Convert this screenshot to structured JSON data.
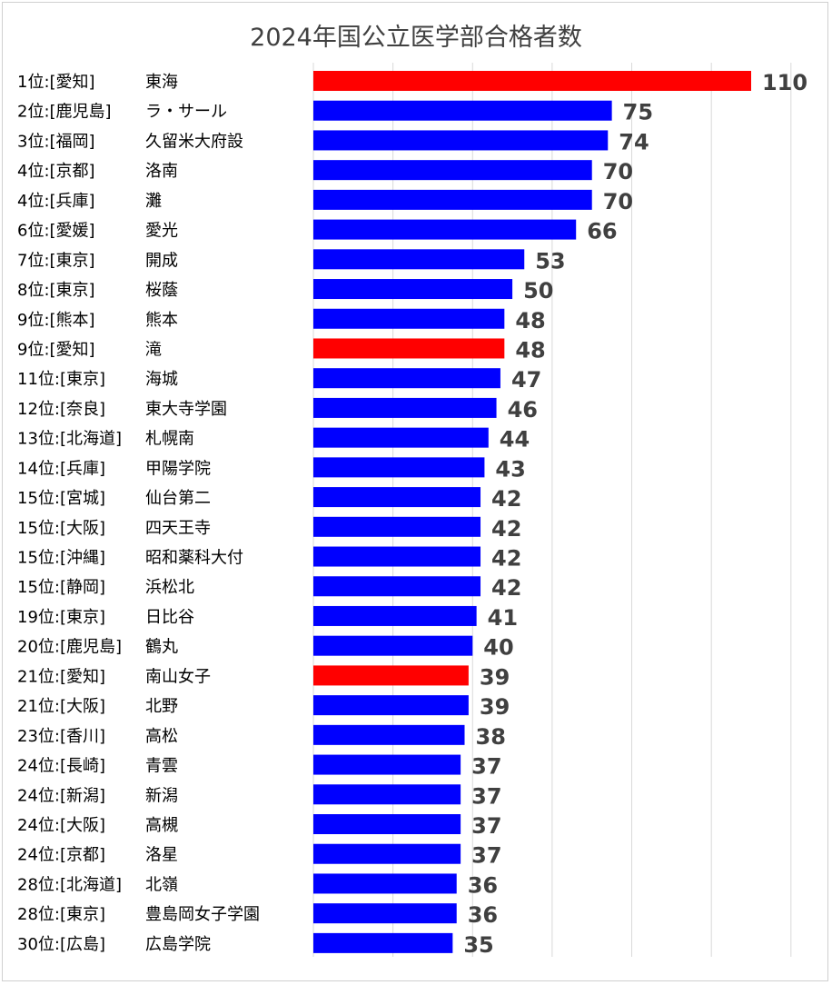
{
  "chart_data": {
    "type": "bar",
    "orientation": "horizontal",
    "title": "2024年国公立医学部合格者数",
    "xlim": [
      0,
      120
    ],
    "grid": true,
    "gridline_step": 20,
    "colors": {
      "default": "#0000FF",
      "highlight": "#FF0000"
    },
    "bars": [
      {
        "rank": "1位:[愛知]",
        "school": "東海",
        "value": 110,
        "highlight": true
      },
      {
        "rank": "2位:[鹿児島]",
        "school": "ラ・サール",
        "value": 75,
        "highlight": false
      },
      {
        "rank": "3位:[福岡]",
        "school": "久留米大府設",
        "value": 74,
        "highlight": false
      },
      {
        "rank": "4位:[京都]",
        "school": "洛南",
        "value": 70,
        "highlight": false
      },
      {
        "rank": "4位:[兵庫]",
        "school": "灘",
        "value": 70,
        "highlight": false
      },
      {
        "rank": "6位:[愛媛]",
        "school": "愛光",
        "value": 66,
        "highlight": false
      },
      {
        "rank": "7位:[東京]",
        "school": "開成",
        "value": 53,
        "highlight": false
      },
      {
        "rank": "8位:[東京]",
        "school": "桜蔭",
        "value": 50,
        "highlight": false
      },
      {
        "rank": "9位:[熊本]",
        "school": "熊本",
        "value": 48,
        "highlight": false
      },
      {
        "rank": "9位:[愛知]",
        "school": "滝",
        "value": 48,
        "highlight": true
      },
      {
        "rank": "11位:[東京]",
        "school": "海城",
        "value": 47,
        "highlight": false
      },
      {
        "rank": "12位:[奈良]",
        "school": "東大寺学園",
        "value": 46,
        "highlight": false
      },
      {
        "rank": "13位:[北海道]",
        "school": "札幌南",
        "value": 44,
        "highlight": false
      },
      {
        "rank": "14位:[兵庫]",
        "school": "甲陽学院",
        "value": 43,
        "highlight": false
      },
      {
        "rank": "15位:[宮城]",
        "school": "仙台第二",
        "value": 42,
        "highlight": false
      },
      {
        "rank": "15位:[大阪]",
        "school": "四天王寺",
        "value": 42,
        "highlight": false
      },
      {
        "rank": "15位:[沖縄]",
        "school": "昭和薬科大付",
        "value": 42,
        "highlight": false
      },
      {
        "rank": "15位:[静岡]",
        "school": "浜松北",
        "value": 42,
        "highlight": false
      },
      {
        "rank": "19位:[東京]",
        "school": "日比谷",
        "value": 41,
        "highlight": false
      },
      {
        "rank": "20位:[鹿児島]",
        "school": "鶴丸",
        "value": 40,
        "highlight": false
      },
      {
        "rank": "21位:[愛知]",
        "school": "南山女子",
        "value": 39,
        "highlight": true
      },
      {
        "rank": "21位:[大阪]",
        "school": "北野",
        "value": 39,
        "highlight": false
      },
      {
        "rank": "23位:[香川]",
        "school": "高松",
        "value": 38,
        "highlight": false
      },
      {
        "rank": "24位:[長崎]",
        "school": "青雲",
        "value": 37,
        "highlight": false
      },
      {
        "rank": "24位:[新潟]",
        "school": "新潟",
        "value": 37,
        "highlight": false
      },
      {
        "rank": "24位:[大阪]",
        "school": "高槻",
        "value": 37,
        "highlight": false
      },
      {
        "rank": "24位:[京都]",
        "school": "洛星",
        "value": 37,
        "highlight": false
      },
      {
        "rank": "28位:[北海道]",
        "school": "北嶺",
        "value": 36,
        "highlight": false
      },
      {
        "rank": "28位:[東京]",
        "school": "豊島岡女子学園",
        "value": 36,
        "highlight": false
      },
      {
        "rank": "30位:[広島]",
        "school": "広島学院",
        "value": 35,
        "highlight": false
      }
    ]
  }
}
